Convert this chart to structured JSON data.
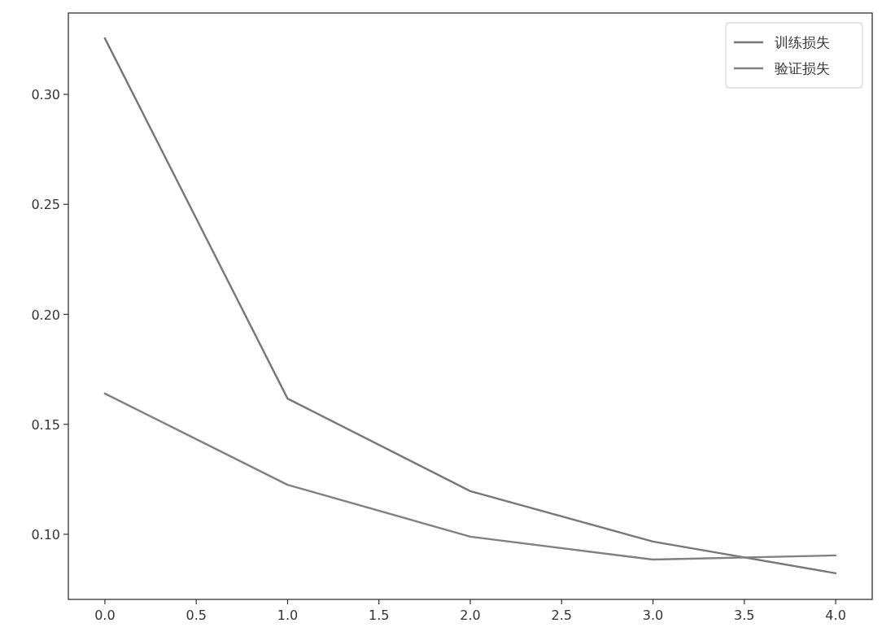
{
  "chart_data": {
    "type": "line",
    "x": [
      0,
      1,
      2,
      3,
      4
    ],
    "series": [
      {
        "name": "训练损失",
        "color": "#777777",
        "values": [
          0.3255,
          0.1617,
          0.1196,
          0.0967,
          0.0823
        ]
      },
      {
        "name": "验证损失",
        "color": "#808080",
        "values": [
          0.164,
          0.1225,
          0.0989,
          0.0885,
          0.0904
        ]
      }
    ],
    "xlim": [
      -0.2,
      4.2
    ],
    "ylim": [
      0.0704,
      0.337
    ],
    "xticks": [
      {
        "value": 0,
        "label": "0.0"
      },
      {
        "value": 0.5,
        "label": "0.5"
      },
      {
        "value": 1,
        "label": "1.0"
      },
      {
        "value": 1.5,
        "label": "1.5"
      },
      {
        "value": 2,
        "label": "2.0"
      },
      {
        "value": 2.5,
        "label": "2.5"
      },
      {
        "value": 3,
        "label": "3.0"
      },
      {
        "value": 3.5,
        "label": "3.5"
      },
      {
        "value": 4,
        "label": "4.0"
      }
    ],
    "yticks": [
      {
        "value": 0.1,
        "label": "0.10"
      },
      {
        "value": 0.15,
        "label": "0.15"
      },
      {
        "value": 0.2,
        "label": "0.20"
      },
      {
        "value": 0.25,
        "label": "0.25"
      },
      {
        "value": 0.3,
        "label": "0.30"
      }
    ],
    "legend": "top right"
  }
}
